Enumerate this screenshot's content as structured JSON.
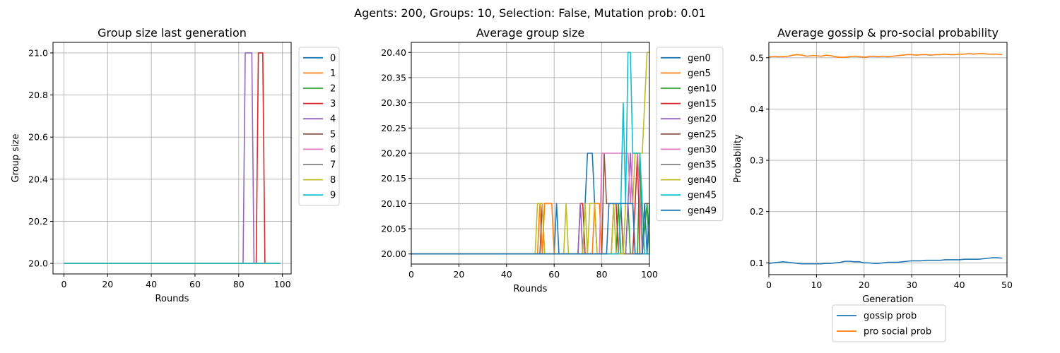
{
  "suptitle": "Agents: 200, Groups: 10, Selection: False, Mutation prob: 0.01",
  "chart_data": [
    {
      "type": "line",
      "title": "Group size last generation",
      "xlabel": "Rounds",
      "ylabel": "Group size",
      "xlim": [
        -5,
        104
      ],
      "ylim": [
        19.95,
        21.05
      ],
      "xticks": [
        0,
        20,
        40,
        60,
        80,
        100
      ],
      "xtick_labels": [
        "0",
        "20",
        "40",
        "60",
        "80",
        "100"
      ],
      "yticks": [
        20.0,
        20.2,
        20.4,
        20.6,
        20.8,
        21.0
      ],
      "ytick_labels": [
        "20.0",
        "20.2",
        "20.4",
        "20.6",
        "20.8",
        "21.0"
      ],
      "grid": true,
      "legend": "outside-right-top",
      "series": [
        {
          "name": "0",
          "color": "#1f77b4",
          "points": [
            [
              0,
              20.0
            ],
            [
              99,
              20.0
            ]
          ]
        },
        {
          "name": "1",
          "color": "#ff7f0e",
          "points": [
            [
              0,
              20.0
            ],
            [
              99,
              20.0
            ]
          ]
        },
        {
          "name": "2",
          "color": "#2ca02c",
          "points": [
            [
              0,
              20.0
            ],
            [
              99,
              20.0
            ]
          ]
        },
        {
          "name": "3",
          "color": "#d62728",
          "points": [
            [
              0,
              20.0
            ],
            [
              88,
              20.0
            ],
            [
              89,
              21.0
            ],
            [
              91,
              21.0
            ],
            [
              92,
              20.0
            ],
            [
              99,
              20.0
            ]
          ]
        },
        {
          "name": "4",
          "color": "#9467bd",
          "points": [
            [
              0,
              20.0
            ],
            [
              82,
              20.0
            ],
            [
              83,
              21.0
            ],
            [
              86,
              21.0
            ],
            [
              87,
              20.0
            ],
            [
              99,
              20.0
            ]
          ]
        },
        {
          "name": "5",
          "color": "#8c564b",
          "points": [
            [
              0,
              20.0
            ],
            [
              99,
              20.0
            ]
          ]
        },
        {
          "name": "6",
          "color": "#e377c2",
          "points": [
            [
              0,
              20.0
            ],
            [
              99,
              20.0
            ]
          ]
        },
        {
          "name": "7",
          "color": "#7f7f7f",
          "points": [
            [
              0,
              20.0
            ],
            [
              99,
              20.0
            ]
          ]
        },
        {
          "name": "8",
          "color": "#bcbd22",
          "points": [
            [
              0,
              20.0
            ],
            [
              99,
              20.0
            ]
          ]
        },
        {
          "name": "9",
          "color": "#17becf",
          "points": [
            [
              0,
              20.0
            ],
            [
              99,
              20.0
            ]
          ]
        }
      ]
    },
    {
      "type": "line",
      "title": "Average group size",
      "xlabel": "Rounds",
      "ylabel": "",
      "xlim": [
        0,
        100
      ],
      "ylim": [
        19.98,
        20.42
      ],
      "xticks": [
        0,
        20,
        40,
        60,
        80,
        100
      ],
      "xtick_labels": [
        "0",
        "20",
        "40",
        "60",
        "80",
        "100"
      ],
      "yticks": [
        20.0,
        20.05,
        20.1,
        20.15,
        20.2,
        20.25,
        20.3,
        20.35,
        20.4
      ],
      "ytick_labels": [
        "20.00",
        "20.05",
        "20.10",
        "20.15",
        "20.20",
        "20.25",
        "20.30",
        "20.35",
        "20.40"
      ],
      "grid": true,
      "legend": "outside-right-top",
      "series": [
        {
          "name": "gen0",
          "color": "#1f77b4",
          "points": [
            [
              0,
              20.0
            ],
            [
              60,
              20.0
            ],
            [
              61,
              20.1
            ],
            [
              62,
              20.0
            ],
            [
              72,
              20.0
            ],
            [
              73,
              20.1
            ],
            [
              74,
              20.2
            ],
            [
              76,
              20.2
            ],
            [
              77,
              20.1
            ],
            [
              78,
              20.0
            ],
            [
              100,
              20.0
            ]
          ]
        },
        {
          "name": "gen5",
          "color": "#ff7f0e",
          "points": [
            [
              0,
              20.0
            ],
            [
              53,
              20.0
            ],
            [
              54,
              20.1
            ],
            [
              55,
              20.0
            ],
            [
              56,
              20.1
            ],
            [
              59,
              20.1
            ],
            [
              60,
              20.0
            ],
            [
              76,
              20.0
            ],
            [
              77,
              20.1
            ],
            [
              79,
              20.1
            ],
            [
              80,
              20.0
            ],
            [
              100,
              20.0
            ]
          ]
        },
        {
          "name": "gen10",
          "color": "#2ca02c",
          "points": [
            [
              0,
              20.0
            ],
            [
              86,
              20.0
            ],
            [
              87,
              20.1
            ],
            [
              88,
              20.0
            ],
            [
              90,
              20.0
            ],
            [
              91,
              20.1
            ],
            [
              92,
              20.0
            ],
            [
              95,
              20.0
            ],
            [
              96,
              20.2
            ],
            [
              97,
              20.0
            ],
            [
              99,
              20.1
            ],
            [
              100,
              20.0
            ]
          ]
        },
        {
          "name": "gen15",
          "color": "#d62728",
          "points": [
            [
              0,
              20.0
            ],
            [
              70,
              20.0
            ],
            [
              71,
              20.1
            ],
            [
              72,
              20.1
            ],
            [
              73,
              20.0
            ],
            [
              84,
              20.0
            ],
            [
              85,
              20.1
            ],
            [
              86,
              20.1
            ],
            [
              87,
              20.0
            ],
            [
              93,
              20.0
            ],
            [
              94,
              20.1
            ],
            [
              95,
              20.2
            ],
            [
              96,
              20.0
            ],
            [
              100,
              20.0
            ]
          ]
        },
        {
          "name": "gen20",
          "color": "#9467bd",
          "points": [
            [
              0,
              20.0
            ],
            [
              70,
              20.0
            ],
            [
              71,
              20.1
            ],
            [
              72,
              20.0
            ],
            [
              90,
              20.0
            ],
            [
              91,
              20.1
            ],
            [
              92,
              20.2
            ],
            [
              93,
              20.1
            ],
            [
              94,
              20.0
            ],
            [
              100,
              20.0
            ]
          ]
        },
        {
          "name": "gen25",
          "color": "#8c564b",
          "points": [
            [
              0,
              20.0
            ],
            [
              54,
              20.0
            ],
            [
              55,
              20.1
            ],
            [
              56,
              20.0
            ],
            [
              80,
              20.0
            ],
            [
              81,
              20.2
            ],
            [
              82,
              20.1
            ],
            [
              88,
              20.1
            ],
            [
              89,
              20.0
            ],
            [
              97,
              20.0
            ],
            [
              98,
              20.1
            ],
            [
              100,
              20.1
            ]
          ]
        },
        {
          "name": "gen30",
          "color": "#e377c2",
          "points": [
            [
              0,
              20.0
            ],
            [
              79,
              20.0
            ],
            [
              80,
              20.2
            ],
            [
              91,
              20.2
            ],
            [
              92,
              20.1
            ],
            [
              93,
              20.2
            ],
            [
              95,
              20.2
            ],
            [
              96,
              20.1
            ],
            [
              97,
              20.0
            ],
            [
              100,
              20.0
            ]
          ]
        },
        {
          "name": "gen35",
          "color": "#7f7f7f",
          "points": [
            [
              0,
              20.0
            ],
            [
              100,
              20.0
            ]
          ]
        },
        {
          "name": "gen40",
          "color": "#bcbd22",
          "points": [
            [
              0,
              20.0
            ],
            [
              52,
              20.0
            ],
            [
              53,
              20.1
            ],
            [
              55,
              20.1
            ],
            [
              56,
              20.0
            ],
            [
              64,
              20.0
            ],
            [
              65,
              20.1
            ],
            [
              66,
              20.0
            ],
            [
              72,
              20.0
            ],
            [
              73,
              20.1
            ],
            [
              74,
              20.0
            ],
            [
              75,
              20.1
            ],
            [
              77,
              20.1
            ],
            [
              78,
              20.0
            ],
            [
              84,
              20.0
            ],
            [
              85,
              20.1
            ],
            [
              86,
              20.0
            ],
            [
              89,
              20.0
            ],
            [
              90,
              20.1
            ],
            [
              93,
              20.1
            ],
            [
              94,
              20.2
            ],
            [
              97,
              20.2
            ],
            [
              99,
              20.4
            ],
            [
              100,
              20.4
            ]
          ]
        },
        {
          "name": "gen45",
          "color": "#17becf",
          "points": [
            [
              0,
              20.0
            ],
            [
              87,
              20.0
            ],
            [
              88,
              20.1
            ],
            [
              89,
              20.3
            ],
            [
              90,
              20.1
            ],
            [
              91,
              20.4
            ],
            [
              92,
              20.4
            ],
            [
              93,
              20.2
            ],
            [
              96,
              20.2
            ],
            [
              97,
              20.1
            ],
            [
              98,
              20.0
            ],
            [
              100,
              20.0
            ]
          ]
        },
        {
          "name": "gen49",
          "color": "#1f77b4",
          "points": [
            [
              0,
              20.0
            ],
            [
              82,
              20.0
            ],
            [
              83,
              20.1
            ],
            [
              93,
              20.1
            ],
            [
              94,
              20.0
            ],
            [
              97,
              20.0
            ],
            [
              98,
              20.1
            ],
            [
              99,
              20.0
            ],
            [
              100,
              20.1
            ]
          ]
        }
      ]
    },
    {
      "type": "line",
      "title": "Average gossip & pro-social probability",
      "xlabel": "Generation",
      "ylabel": "Probability",
      "xlim": [
        0,
        50
      ],
      "ylim": [
        0.077,
        0.53
      ],
      "xticks": [
        0,
        10,
        20,
        30,
        40,
        50
      ],
      "xtick_labels": [
        "0",
        "10",
        "20",
        "30",
        "40",
        "50"
      ],
      "yticks": [
        0.1,
        0.2,
        0.3,
        0.4,
        0.5
      ],
      "ytick_labels": [
        "0.1",
        "0.2",
        "0.3",
        "0.4",
        "0.5"
      ],
      "grid": true,
      "legend": "below",
      "series": [
        {
          "name": "gossip prob",
          "color": "#1f77b4",
          "x": [
            0,
            1,
            2,
            3,
            4,
            5,
            6,
            7,
            8,
            9,
            10,
            11,
            12,
            13,
            14,
            15,
            16,
            17,
            18,
            19,
            20,
            21,
            22,
            23,
            24,
            25,
            26,
            27,
            28,
            29,
            30,
            31,
            32,
            33,
            34,
            35,
            36,
            37,
            38,
            39,
            40,
            41,
            42,
            43,
            44,
            45,
            46,
            47,
            48,
            49
          ],
          "values": [
            0.099,
            0.1,
            0.101,
            0.102,
            0.101,
            0.1,
            0.099,
            0.098,
            0.098,
            0.098,
            0.098,
            0.098,
            0.099,
            0.099,
            0.1,
            0.101,
            0.103,
            0.103,
            0.102,
            0.102,
            0.1,
            0.1,
            0.099,
            0.099,
            0.1,
            0.101,
            0.101,
            0.101,
            0.102,
            0.103,
            0.104,
            0.104,
            0.104,
            0.105,
            0.105,
            0.105,
            0.105,
            0.106,
            0.106,
            0.106,
            0.106,
            0.107,
            0.107,
            0.107,
            0.107,
            0.108,
            0.109,
            0.11,
            0.11,
            0.109
          ]
        },
        {
          "name": "pro social prob",
          "color": "#ff7f0e",
          "x": [
            0,
            1,
            2,
            3,
            4,
            5,
            6,
            7,
            8,
            9,
            10,
            11,
            12,
            13,
            14,
            15,
            16,
            17,
            18,
            19,
            20,
            21,
            22,
            23,
            24,
            25,
            26,
            27,
            28,
            29,
            30,
            31,
            32,
            33,
            34,
            35,
            36,
            37,
            38,
            39,
            40,
            41,
            42,
            43,
            44,
            45,
            46,
            47,
            48,
            49
          ],
          "values": [
            0.501,
            0.503,
            0.502,
            0.502,
            0.503,
            0.505,
            0.506,
            0.505,
            0.503,
            0.504,
            0.504,
            0.503,
            0.505,
            0.504,
            0.502,
            0.501,
            0.501,
            0.502,
            0.503,
            0.502,
            0.501,
            0.502,
            0.503,
            0.502,
            0.503,
            0.502,
            0.503,
            0.504,
            0.505,
            0.506,
            0.506,
            0.505,
            0.506,
            0.506,
            0.505,
            0.506,
            0.506,
            0.507,
            0.506,
            0.506,
            0.507,
            0.507,
            0.508,
            0.507,
            0.508,
            0.508,
            0.507,
            0.507,
            0.507,
            0.506
          ]
        }
      ]
    }
  ]
}
